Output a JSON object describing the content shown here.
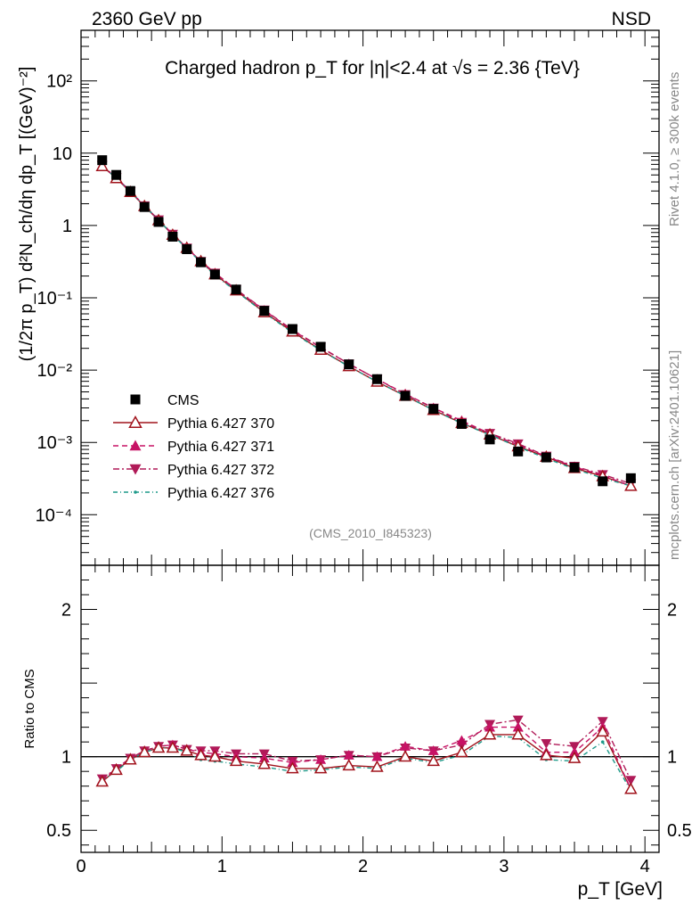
{
  "header": {
    "energy_label": "2360 GeV pp",
    "process_label": "NSD",
    "plot_title": "Charged hadron p_T for |η|<2.4 at √s = 2.36 {TeV}",
    "analysis_tag": "(CMS_2010_I845323)",
    "side_label_top": "Rivet 4.1.0, ≥ 300k events",
    "side_label_bottom": "mcplots.cern.ch [arXiv:2401.10621]"
  },
  "colors": {
    "cms": "#000000",
    "p370": "#a1131c",
    "p371": "#c71265",
    "p372": "#b01a58",
    "p376": "#1f9a8a"
  },
  "chart_data": [
    {
      "type": "scatter",
      "title": "Charged hadron p_T for |η|<2.4 at √s = 2.36 {TeV}",
      "xlabel": "p_T [GeV]",
      "ylabel": "(1/2π p_T) d²N_ch/dη dp_T [(GeV)⁻²]",
      "yscale": "log",
      "xlim": [
        0,
        4.1
      ],
      "ylim": [
        2e-05,
        500
      ],
      "x": [
        0.15,
        0.25,
        0.35,
        0.45,
        0.55,
        0.65,
        0.75,
        0.85,
        0.95,
        1.1,
        1.3,
        1.5,
        1.7,
        1.9,
        2.1,
        2.3,
        2.5,
        2.7,
        2.9,
        3.1,
        3.3,
        3.5,
        3.7,
        3.9
      ],
      "series": [
        {
          "name": "CMS",
          "marker": "square",
          "values": [
            8.0,
            5.0,
            3.0,
            1.8,
            1.12,
            0.7,
            0.47,
            0.31,
            0.21,
            0.13,
            0.066,
            0.037,
            0.021,
            0.012,
            0.0075,
            0.0044,
            0.0029,
            0.0018,
            0.0011,
            0.00075,
            0.00062,
            0.00045,
            0.00029,
            0.00032
          ]
        },
        {
          "name": "Pythia 6.427 370",
          "marker": "triangle-up-open",
          "values": [
            6.6,
            4.5,
            2.9,
            1.85,
            1.18,
            0.74,
            0.49,
            0.32,
            0.21,
            0.126,
            0.063,
            0.034,
            0.019,
            0.0113,
            0.0069,
            0.0044,
            0.0028,
            0.00185,
            0.00128,
            0.00088,
            0.00063,
            0.00044,
            0.00034,
            0.00025
          ]
        },
        {
          "name": "Pythia 6.427 371",
          "marker": "triangle-up",
          "values": [
            6.6,
            4.6,
            2.95,
            1.88,
            1.2,
            0.76,
            0.49,
            0.32,
            0.22,
            0.13,
            0.067,
            0.0355,
            0.0205,
            0.0122,
            0.0075,
            0.0047,
            0.003,
            0.002,
            0.00133,
            0.00092,
            0.00064,
            0.00046,
            0.00035,
            0.00025
          ]
        },
        {
          "name": "Pythia 6.427 372",
          "marker": "triangle-down",
          "values": [
            6.8,
            4.6,
            2.95,
            1.88,
            1.2,
            0.76,
            0.49,
            0.32,
            0.22,
            0.131,
            0.068,
            0.036,
            0.0208,
            0.0122,
            0.0075,
            0.0046,
            0.003,
            0.0019,
            0.00134,
            0.00096,
            0.00065,
            0.00047,
            0.00036,
            0.00027
          ]
        },
        {
          "name": "Pythia 6.427 376",
          "marker": "dot",
          "values": [
            6.7,
            4.5,
            2.95,
            1.87,
            1.19,
            0.74,
            0.48,
            0.31,
            0.205,
            0.123,
            0.062,
            0.033,
            0.0188,
            0.0112,
            0.0069,
            0.0044,
            0.0028,
            0.00183,
            0.00127,
            0.00087,
            0.0006,
            0.00043,
            0.00032,
            0.00025
          ]
        }
      ],
      "yticks": [
        {
          "value": 0.0001,
          "label": "10⁻⁴"
        },
        {
          "value": 0.001,
          "label": "10⁻³"
        },
        {
          "value": 0.01,
          "label": "10⁻²"
        },
        {
          "value": 0.1,
          "label": "10⁻¹"
        },
        {
          "value": 1,
          "label": "1"
        },
        {
          "value": 10,
          "label": "10"
        },
        {
          "value": 100,
          "label": "10²"
        }
      ]
    },
    {
      "type": "line",
      "ylabel": "Ratio to CMS",
      "xlabel": "p_T [GeV]",
      "xlim": [
        0,
        4.1
      ],
      "ylim": [
        0.35,
        2.3
      ],
      "x": [
        0.15,
        0.25,
        0.35,
        0.45,
        0.55,
        0.65,
        0.75,
        0.85,
        0.95,
        1.1,
        1.3,
        1.5,
        1.7,
        1.9,
        2.1,
        2.3,
        2.5,
        2.7,
        2.9,
        3.1,
        3.3,
        3.5,
        3.7,
        3.9
      ],
      "series": [
        {
          "name": "Pythia 6.427 370",
          "values": [
            0.83,
            0.91,
            0.98,
            1.03,
            1.06,
            1.06,
            1.04,
            1.01,
            1.0,
            0.97,
            0.95,
            0.92,
            0.92,
            0.94,
            0.93,
            1.0,
            0.97,
            1.03,
            1.15,
            1.15,
            1.01,
            0.99,
            1.17,
            0.78
          ]
        },
        {
          "name": "Pythia 6.427 371",
          "values": [
            0.84,
            0.92,
            0.99,
            1.04,
            1.07,
            1.08,
            1.05,
            1.03,
            1.02,
            1.0,
            0.99,
            0.96,
            0.98,
            1.01,
            1.0,
            1.07,
            1.04,
            1.11,
            1.2,
            1.2,
            1.03,
            1.03,
            1.2,
            0.78
          ]
        },
        {
          "name": "Pythia 6.427 372",
          "values": [
            0.85,
            0.92,
            0.99,
            1.04,
            1.07,
            1.08,
            1.05,
            1.04,
            1.04,
            1.02,
            1.02,
            0.97,
            0.98,
            1.01,
            1.0,
            1.06,
            1.04,
            1.08,
            1.22,
            1.25,
            1.09,
            1.07,
            1.24,
            0.84
          ]
        },
        {
          "name": "Pythia 6.427 376",
          "values": [
            0.84,
            0.9,
            0.98,
            1.03,
            1.06,
            1.06,
            1.03,
            0.98,
            0.97,
            0.95,
            0.93,
            0.9,
            0.91,
            0.93,
            0.92,
            0.99,
            0.96,
            1.01,
            1.14,
            1.13,
            0.98,
            0.97,
            1.1,
            0.77
          ]
        }
      ],
      "reference_line": 1,
      "yticks": [
        {
          "value": 0.5,
          "label": "0.5"
        },
        {
          "value": 1,
          "label": "1"
        },
        {
          "value": 2,
          "label": "2"
        }
      ],
      "xticks": [
        {
          "value": 0,
          "label": "0"
        },
        {
          "value": 1,
          "label": "1"
        },
        {
          "value": 2,
          "label": "2"
        },
        {
          "value": 3,
          "label": "3"
        },
        {
          "value": 4,
          "label": "4"
        }
      ]
    }
  ]
}
